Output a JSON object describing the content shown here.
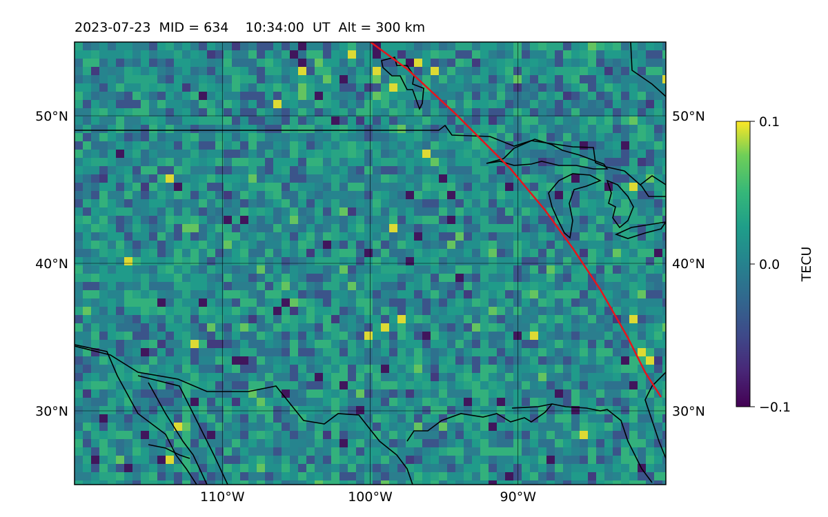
{
  "title": "2023-07-23  MID = 634    10:34:00  UT  Alt = 300 km",
  "map": {
    "lon_range": [
      -120,
      -80
    ],
    "lat_range": [
      25,
      55
    ],
    "x_ticks": [
      "110°W",
      "100°W",
      "90°W"
    ],
    "y_ticks_left": [
      "50°N",
      "40°N",
      "30°N"
    ],
    "y_ticks_right": [
      "50°N",
      "40°N",
      "30°N"
    ],
    "track_color": "#e8141b",
    "coastline_color": "#000000",
    "colormap": "viridis"
  },
  "colorbar": {
    "label": "TECU",
    "ticks": [
      "0.1",
      "0.0",
      "−0.1"
    ],
    "min": -0.1,
    "max": 0.1
  }
}
